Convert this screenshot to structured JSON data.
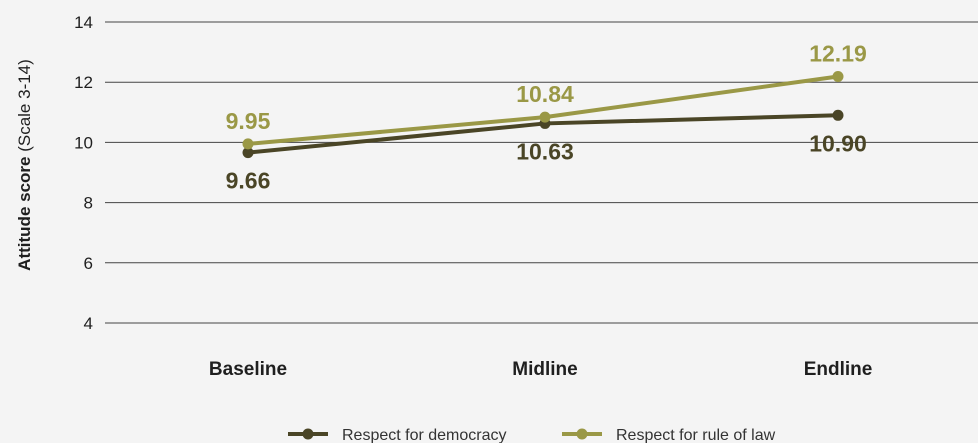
{
  "chart_data": {
    "type": "line",
    "categories": [
      "Baseline",
      "Midline",
      "Endline"
    ],
    "ylabel_bold": "Attitude score",
    "ylabel_rest": "(Scale 3-14)",
    "ylim": [
      4,
      14
    ],
    "yticks": [
      "4",
      "6",
      "8",
      "10",
      "12",
      "14"
    ],
    "grid": true,
    "legend_position": "bottom",
    "series": [
      {
        "name": "Respect for democracy",
        "values": [
          9.66,
          10.63,
          10.9
        ],
        "labels": [
          "9.66",
          "10.63",
          "10.90"
        ],
        "color": "#4a4526"
      },
      {
        "name": "Respect for rule of law",
        "values": [
          9.95,
          10.84,
          12.19
        ],
        "labels": [
          "9.95",
          "10.84",
          "12.19"
        ],
        "color": "#9a9846"
      }
    ]
  }
}
